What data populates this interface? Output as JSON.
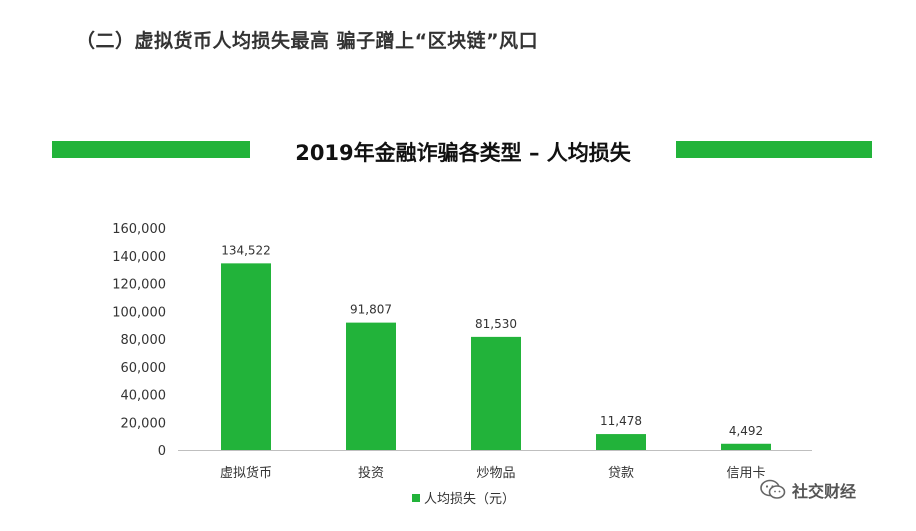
{
  "section_heading": "（二）虚拟货币人均损失最高 骗子蹭上“区块链”风口",
  "watermark": {
    "text": "社交财经",
    "icon": "wechat-icon"
  },
  "colors": {
    "bar": "#22b33a",
    "axis": "#bfbfbf",
    "text": "#333333"
  },
  "chart_data": {
    "type": "bar",
    "title": "2019年金融诈骗各类型 – 人均损失",
    "categories": [
      "虚拟货币",
      "投资",
      "炒物品",
      "贷款",
      "信用卡"
    ],
    "series": [
      {
        "name": "人均损失（元）",
        "values": [
          134522,
          91807,
          81530,
          11478,
          4492
        ]
      }
    ],
    "data_labels": [
      "134,522",
      "91,807",
      "81,530",
      "11,478",
      "4,492"
    ],
    "y_ticks": [
      "0",
      "20,000",
      "40,000",
      "60,000",
      "80,000",
      "100,000",
      "120,000",
      "140,000",
      "160,000"
    ],
    "ylim": [
      0,
      160000
    ],
    "xlabel": "",
    "ylabel": "",
    "grid": false,
    "legend_position": "bottom"
  }
}
